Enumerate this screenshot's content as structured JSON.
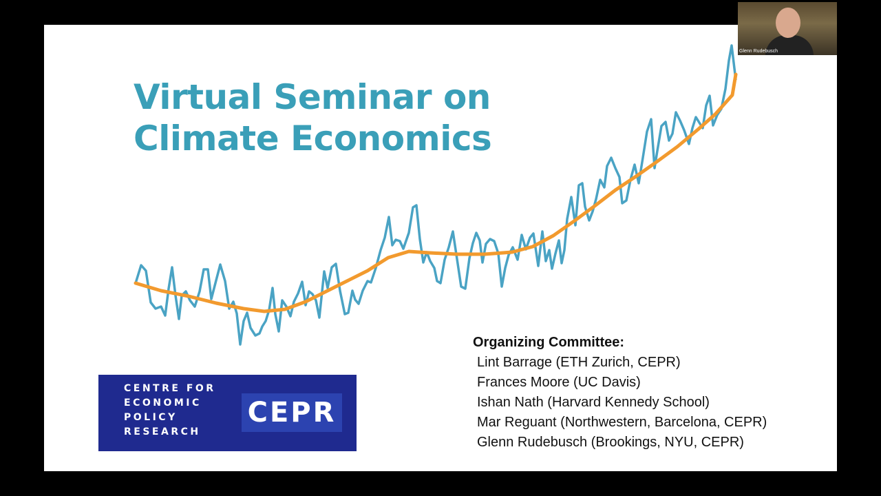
{
  "slide": {
    "title_lines": [
      "Virtual Seminar on",
      "Climate Economics"
    ],
    "logo": {
      "lines": [
        "CENTRE FOR",
        "ECONOMIC",
        "POLICY",
        "RESEARCH"
      ],
      "acronym": "CEPR"
    },
    "committee": {
      "heading": "Organizing Committee:",
      "members": [
        "Lint Barrage (ETH Zurich, CEPR)",
        "Frances Moore (UC Davis)",
        "Ishan Nath (Harvard Kennedy School)",
        "Mar Reguant (Northwestern, Barcelona, CEPR)",
        "Glenn Rudebusch (Brookings, NYU, CEPR)"
      ]
    }
  },
  "participant": {
    "name": "Glenn Rudebusch"
  }
}
